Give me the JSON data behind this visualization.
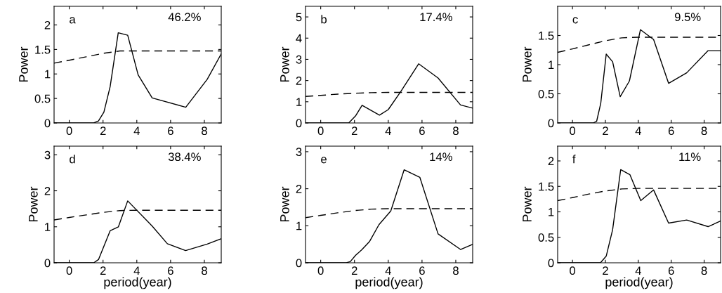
{
  "chart_data": [
    {
      "type": "line",
      "ylabel": "Power",
      "annotations": [
        "a",
        "46.2%"
      ],
      "xlim": [
        -0.9,
        9
      ],
      "xticks": [
        0,
        2,
        4,
        6,
        8
      ],
      "ylim": [
        0,
        2.38
      ],
      "yticks": [
        0,
        0.5,
        1,
        1.5,
        2
      ],
      "series": [
        {
          "color": "#000000",
          "line_style": "solid",
          "x": [
            -0.9,
            1.45,
            1.73,
            2.05,
            2.42,
            2.9,
            3.46,
            4.08,
            4.91,
            6.9,
            8.17,
            9
          ],
          "values": [
            0,
            0,
            0.04,
            0.22,
            0.74,
            1.84,
            1.79,
            0.98,
            0.51,
            0.32,
            0.89,
            1.41
          ]
        },
        {
          "color": "#000000",
          "line_style": "dashed",
          "x": [
            -0.9,
            0,
            1,
            2,
            3,
            4,
            9
          ],
          "values": [
            1.22,
            1.28,
            1.35,
            1.42,
            1.47,
            1.47,
            1.47
          ]
        }
      ]
    },
    {
      "type": "line",
      "ylabel": "Power",
      "annotations": [
        "b",
        "17.4%"
      ],
      "xlim": [
        -0.9,
        9
      ],
      "xticks": [
        0,
        2,
        4,
        6,
        8
      ],
      "ylim": [
        0,
        5.5
      ],
      "yticks": [
        0,
        1,
        2,
        3,
        4,
        5
      ],
      "series": [
        {
          "color": "#000000",
          "line_style": "solid",
          "x": [
            -0.9,
            1.66,
            2.06,
            2.45,
            3.48,
            4.0,
            4.76,
            5.8,
            6.95,
            8.28,
            9
          ],
          "values": [
            0,
            0,
            0.33,
            0.83,
            0.37,
            0.63,
            1.5,
            2.79,
            2.12,
            0.85,
            0.7
          ]
        },
        {
          "color": "#000000",
          "line_style": "dashed",
          "x": [
            -0.9,
            0,
            1,
            2,
            3,
            4,
            9
          ],
          "values": [
            1.25,
            1.3,
            1.36,
            1.4,
            1.43,
            1.44,
            1.44
          ]
        }
      ]
    },
    {
      "type": "line",
      "ylabel": "Power",
      "annotations": [
        "c",
        "9.5%"
      ],
      "xlim": [
        -0.9,
        9
      ],
      "xticks": [
        0,
        2,
        4,
        6,
        8
      ],
      "ylim": [
        0,
        2.0
      ],
      "yticks": [
        0,
        0.5,
        1,
        1.5
      ],
      "series": [
        {
          "color": "#000000",
          "line_style": "solid",
          "x": [
            -0.9,
            1.26,
            1.47,
            1.72,
            2.05,
            2.44,
            2.9,
            3.46,
            4.13,
            4.93,
            5.84,
            6.94,
            8.24,
            9
          ],
          "values": [
            0,
            0,
            0.03,
            0.34,
            1.18,
            1.05,
            0.45,
            0.72,
            1.6,
            1.43,
            0.68,
            0.86,
            1.24,
            1.24
          ]
        },
        {
          "color": "#000000",
          "line_style": "dashed",
          "x": [
            -0.9,
            0,
            1,
            2,
            3,
            4,
            9
          ],
          "values": [
            1.21,
            1.27,
            1.34,
            1.41,
            1.46,
            1.47,
            1.47
          ]
        }
      ]
    },
    {
      "type": "line",
      "xlabel": "period(year)",
      "ylabel": "Power",
      "annotations": [
        "d",
        "38.4%"
      ],
      "xlim": [
        -0.9,
        9
      ],
      "xticks": [
        0,
        2,
        4,
        6,
        8
      ],
      "ylim": [
        0,
        3.24
      ],
      "yticks": [
        0,
        1,
        2,
        3
      ],
      "series": [
        {
          "color": "#000000",
          "line_style": "solid",
          "x": [
            -0.9,
            1.45,
            1.73,
            2.42,
            2.91,
            3.46,
            4.91,
            5.81,
            6.89,
            8.17,
            9
          ],
          "values": [
            0,
            0,
            0.09,
            0.89,
            1.0,
            1.72,
            1.02,
            0.53,
            0.34,
            0.52,
            0.67
          ]
        },
        {
          "color": "#000000",
          "line_style": "dashed",
          "x": [
            -0.9,
            0,
            1,
            2,
            3,
            4,
            9
          ],
          "values": [
            1.19,
            1.26,
            1.33,
            1.4,
            1.45,
            1.46,
            1.46
          ]
        }
      ]
    },
    {
      "type": "line",
      "xlabel": "period(year)",
      "ylabel": "Power",
      "annotations": [
        "e",
        "14%"
      ],
      "xlim": [
        -0.9,
        9
      ],
      "xticks": [
        0,
        2,
        4,
        6,
        8
      ],
      "ylim": [
        0,
        3.15
      ],
      "yticks": [
        0,
        1,
        2,
        3
      ],
      "series": [
        {
          "color": "#000000",
          "line_style": "solid",
          "x": [
            -0.9,
            1.52,
            1.75,
            2.06,
            2.43,
            2.9,
            3.45,
            4.15,
            4.94,
            5.87,
            6.95,
            8.28,
            9
          ],
          "values": [
            0,
            0,
            0.03,
            0.2,
            0.35,
            0.58,
            1.03,
            1.4,
            2.51,
            2.31,
            0.78,
            0.36,
            0.5
          ]
        },
        {
          "color": "#000000",
          "line_style": "dashed",
          "x": [
            -0.9,
            0,
            1,
            2,
            3,
            4,
            9
          ],
          "values": [
            1.22,
            1.28,
            1.35,
            1.41,
            1.45,
            1.46,
            1.46
          ]
        }
      ]
    },
    {
      "type": "line",
      "xlabel": "period(year)",
      "ylabel": "Power",
      "annotations": [
        "f",
        "11%"
      ],
      "xlim": [
        -0.9,
        9
      ],
      "xticks": [
        0,
        2,
        4,
        6,
        8
      ],
      "ylim": [
        0,
        2.29
      ],
      "yticks": [
        0,
        0.5,
        1,
        1.5,
        2
      ],
      "series": [
        {
          "color": "#000000",
          "line_style": "solid",
          "x": [
            -0.9,
            1.7,
            2.05,
            2.44,
            2.93,
            3.49,
            4.15,
            4.93,
            5.84,
            6.94,
            8.24,
            9
          ],
          "values": [
            0,
            0,
            0.13,
            0.65,
            1.83,
            1.73,
            1.22,
            1.43,
            0.78,
            0.84,
            0.71,
            0.82
          ]
        },
        {
          "color": "#000000",
          "line_style": "dashed",
          "x": [
            -0.9,
            0,
            1,
            2,
            3,
            4,
            9
          ],
          "values": [
            1.22,
            1.28,
            1.35,
            1.41,
            1.45,
            1.46,
            1.46
          ]
        }
      ]
    }
  ]
}
